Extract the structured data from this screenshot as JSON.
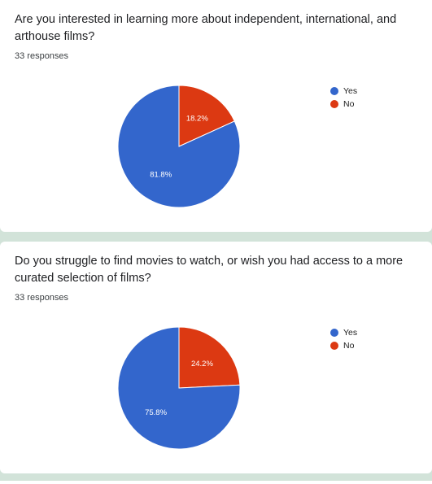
{
  "colors": {
    "yes": "#3366cc",
    "no": "#dc3912"
  },
  "chart_data": [
    {
      "type": "pie",
      "title": "Are you interested in learning more about independent, international, and arthouse films?",
      "responses": "33 responses",
      "legend_position": "top-right",
      "slices": [
        {
          "label": "Yes",
          "value": 81.8,
          "text": "81.8%"
        },
        {
          "label": "No",
          "value": 18.2,
          "text": "18.2%"
        }
      ]
    },
    {
      "type": "pie",
      "title": "Do you struggle to find movies to watch, or wish you had access to a more curated selection of films?",
      "responses": "33 responses",
      "legend_position": "top-right",
      "slices": [
        {
          "label": "Yes",
          "value": 75.8,
          "text": "75.8%"
        },
        {
          "label": "No",
          "value": 24.2,
          "text": "24.2%"
        }
      ]
    }
  ]
}
